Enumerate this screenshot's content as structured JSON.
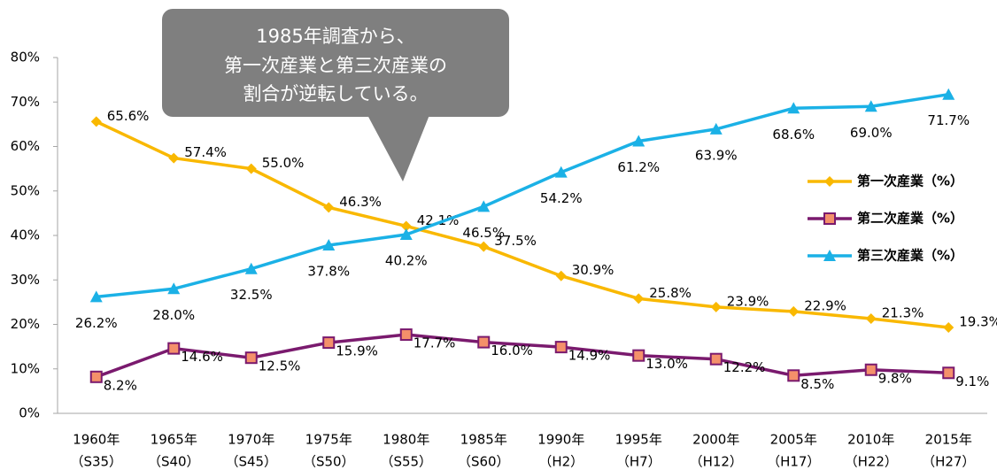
{
  "chart_data": {
    "type": "line",
    "categories": [
      "1960年",
      "1965年",
      "1970年",
      "1975年",
      "1980年",
      "1985年",
      "1990年",
      "1995年",
      "2000年",
      "2005年",
      "2010年",
      "2015年"
    ],
    "category_eras": [
      "（S35）",
      "（S40）",
      "（S45）",
      "（S50）",
      "（S55）",
      "（S60）",
      "（H2）",
      "（H7）",
      "（H12）",
      "（H17）",
      "（H22）",
      "（H27）"
    ],
    "series": [
      {
        "name": "第一次産業（%）",
        "color": "#f9b800",
        "marker": "diamond",
        "values": [
          65.6,
          57.4,
          55.0,
          46.3,
          42.1,
          37.5,
          30.9,
          25.8,
          23.9,
          22.9,
          21.3,
          19.3
        ],
        "value_labels": [
          "65.6%",
          "57.4%",
          "55.0%",
          "46.3%",
          "42.1%",
          "37.5%",
          "30.9%",
          "25.8%",
          "23.9%",
          "22.9%",
          "21.3%",
          "19.3%"
        ]
      },
      {
        "name": "第二次産業（%）",
        "color": "#7a1a6e",
        "marker": "square",
        "values": [
          8.2,
          14.6,
          12.5,
          15.9,
          17.7,
          16.0,
          14.9,
          13.0,
          12.2,
          8.5,
          9.8,
          9.1
        ],
        "value_labels": [
          "8.2%",
          "14.6%",
          "12.5%",
          "15.9%",
          "17.7%",
          "16.0%",
          "14.9%",
          "13.0%",
          "12.2%",
          "8.5%",
          "9.8%",
          "9.1%"
        ]
      },
      {
        "name": "第三次産業（%）",
        "color": "#1bb1e6",
        "marker": "triangle",
        "values": [
          26.2,
          28.0,
          32.5,
          37.8,
          40.2,
          46.5,
          54.2,
          61.2,
          63.9,
          68.6,
          69.0,
          71.7
        ],
        "value_labels": [
          "26.2%",
          "28.0%",
          "32.5%",
          "37.8%",
          "40.2%",
          "46.5%",
          "54.2%",
          "61.2%",
          "63.9%",
          "68.6%",
          "69.0%",
          "71.7%"
        ]
      }
    ],
    "ylim": [
      0,
      80
    ],
    "yticks": [
      {
        "value": 0,
        "label": "0%"
      },
      {
        "value": 10,
        "label": "10%"
      },
      {
        "value": 20,
        "label": "20%"
      },
      {
        "value": 30,
        "label": "30%"
      },
      {
        "value": 40,
        "label": "40%"
      },
      {
        "value": 50,
        "label": "50%"
      },
      {
        "value": 60,
        "label": "60%"
      },
      {
        "value": 70,
        "label": "70%"
      },
      {
        "value": 80,
        "label": "80%"
      }
    ],
    "grid": false,
    "legend": "right",
    "annotation": [
      "1985年調査から、",
      "第一次産業と第三次産業の",
      "割合が逆転している。"
    ]
  }
}
